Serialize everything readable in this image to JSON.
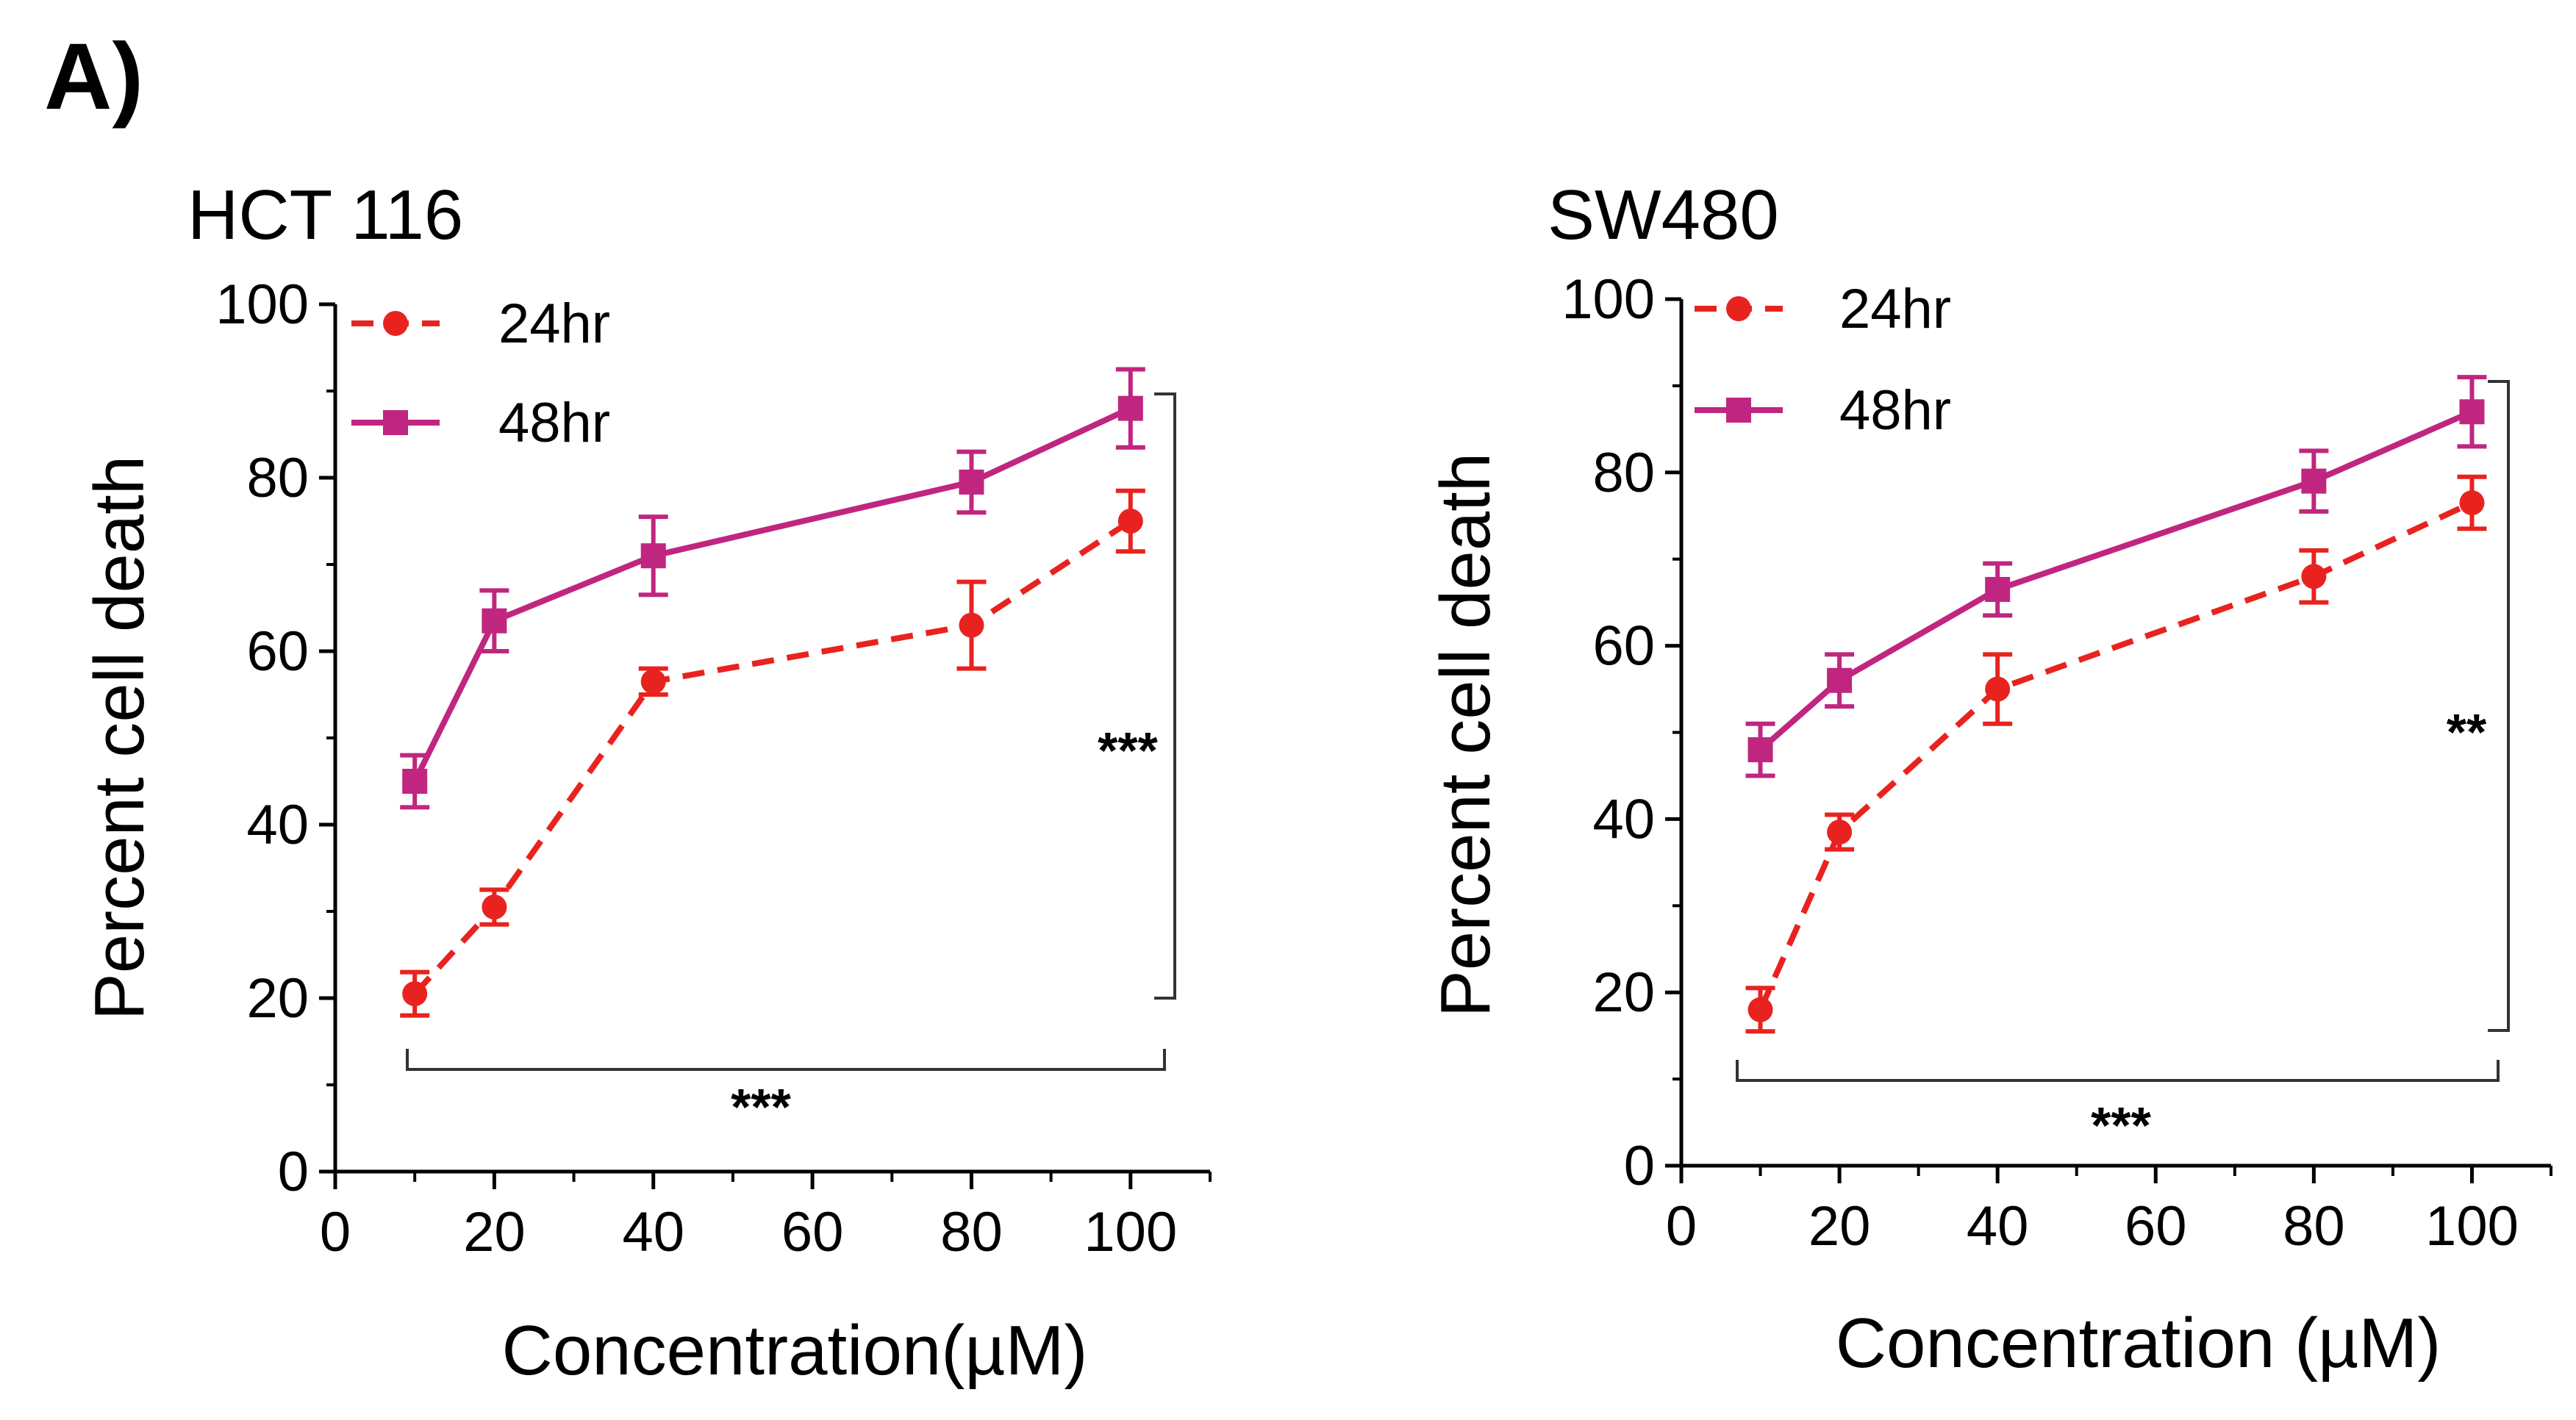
{
  "panel_label": "A)",
  "chart_data": [
    {
      "type": "line",
      "title": "HCT 116",
      "xlabel": "Concentration(µM)",
      "ylabel": "Percent cell death",
      "xlim": [
        0,
        110
      ],
      "ylim": [
        0,
        100
      ],
      "x_ticks": [
        0,
        20,
        40,
        60,
        80,
        100
      ],
      "y_ticks": [
        0,
        20,
        40,
        60,
        80,
        100
      ],
      "x": [
        10,
        20,
        40,
        80,
        100
      ],
      "series": [
        {
          "name": "24hr",
          "color": "#e8231f",
          "style": "dashed",
          "marker": "circle",
          "values": [
            20.5,
            30.5,
            56.5,
            63,
            75
          ],
          "errors": [
            2.5,
            2,
            1.5,
            5,
            3.5
          ]
        },
        {
          "name": "48hr",
          "color": "#c0267f",
          "style": "solid",
          "marker": "square",
          "values": [
            45,
            63.5,
            71,
            79.5,
            88
          ],
          "errors": [
            3,
            3.5,
            4.5,
            3.5,
            4.5
          ]
        }
      ],
      "significance": [
        {
          "label": "***",
          "type": "vertical"
        },
        {
          "label": "***",
          "type": "horizontal"
        }
      ]
    },
    {
      "type": "line",
      "title": "SW480",
      "xlabel": "Concentration (µM)",
      "ylabel": "Percent cell death",
      "xlim": [
        0,
        110
      ],
      "ylim": [
        0,
        100
      ],
      "x_ticks": [
        0,
        20,
        40,
        60,
        80,
        100
      ],
      "y_ticks": [
        0,
        20,
        40,
        60,
        80,
        100
      ],
      "x": [
        10,
        20,
        40,
        80,
        100
      ],
      "series": [
        {
          "name": "24hr",
          "color": "#e8231f",
          "style": "dashed",
          "marker": "circle",
          "values": [
            18,
            38.5,
            55,
            68,
            76.5
          ],
          "errors": [
            2.5,
            2,
            4,
            3,
            3
          ]
        },
        {
          "name": "48hr",
          "color": "#c0267f",
          "style": "solid",
          "marker": "square",
          "values": [
            48,
            56,
            66.5,
            79,
            87
          ],
          "errors": [
            3,
            3,
            3,
            3.5,
            4
          ]
        }
      ],
      "significance": [
        {
          "label": "**",
          "type": "vertical"
        },
        {
          "label": "***",
          "type": "horizontal"
        }
      ]
    }
  ]
}
